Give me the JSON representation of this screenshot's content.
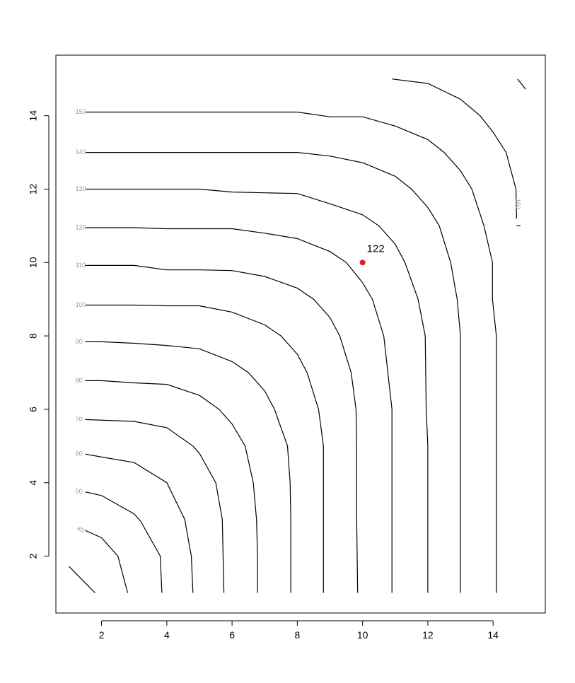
{
  "chart_data": {
    "type": "contour",
    "title": "",
    "xlabel": "",
    "ylabel": "",
    "xlim": [
      0.6,
      15.6
    ],
    "ylim": [
      0.45,
      15.65
    ],
    "x_ticks": [
      "2",
      "4",
      "6",
      "8",
      "10",
      "12",
      "14"
    ],
    "y_ticks": [
      "2",
      "4",
      "6",
      "8",
      "10",
      "12",
      "14"
    ],
    "grid": false,
    "contour_levels": [
      {
        "level": "40",
        "points": [
          [
            1.0,
            1.72
          ],
          [
            1.8,
            1.0
          ]
        ]
      },
      {
        "level": "40",
        "points": [
          [
            1.5,
            2.7
          ],
          [
            2.0,
            2.5
          ],
          [
            2.5,
            2.0
          ],
          [
            2.8,
            1.0
          ]
        ]
      },
      {
        "level": "50",
        "points": [
          [
            1.5,
            3.75
          ],
          [
            2.0,
            3.65
          ],
          [
            3.0,
            3.15
          ],
          [
            3.2,
            2.95
          ],
          [
            3.8,
            2.0
          ],
          [
            3.85,
            1.0
          ]
        ]
      },
      {
        "level": "60",
        "points": [
          [
            1.5,
            4.78
          ],
          [
            2.0,
            4.7
          ],
          [
            3.0,
            4.55
          ],
          [
            4.0,
            4.0
          ],
          [
            4.55,
            3.0
          ],
          [
            4.75,
            2.0
          ],
          [
            4.8,
            1.0
          ]
        ]
      },
      {
        "level": "70",
        "points": [
          [
            1.5,
            5.72
          ],
          [
            3.0,
            5.67
          ],
          [
            4.0,
            5.5
          ],
          [
            4.8,
            5.0
          ],
          [
            5.0,
            4.8
          ],
          [
            5.5,
            4.0
          ],
          [
            5.7,
            3.0
          ],
          [
            5.75,
            1.0
          ]
        ]
      },
      {
        "level": "80",
        "points": [
          [
            1.5,
            6.78
          ],
          [
            2.0,
            6.78
          ],
          [
            3.0,
            6.72
          ],
          [
            4.0,
            6.68
          ],
          [
            5.0,
            6.38
          ],
          [
            5.6,
            6.0
          ],
          [
            6.0,
            5.6
          ],
          [
            6.4,
            5.0
          ],
          [
            6.65,
            4.0
          ],
          [
            6.75,
            3.0
          ],
          [
            6.78,
            2.0
          ],
          [
            6.78,
            1.0
          ]
        ]
      },
      {
        "level": "90",
        "points": [
          [
            1.5,
            7.84
          ],
          [
            2.0,
            7.84
          ],
          [
            3.0,
            7.8
          ],
          [
            4.0,
            7.74
          ],
          [
            5.0,
            7.65
          ],
          [
            6.0,
            7.3
          ],
          [
            6.5,
            7.0
          ],
          [
            7.0,
            6.5
          ],
          [
            7.3,
            6.0
          ],
          [
            7.7,
            5.0
          ],
          [
            7.78,
            4.0
          ],
          [
            7.8,
            3.0
          ],
          [
            7.8,
            1.0
          ]
        ]
      },
      {
        "level": "100",
        "points": [
          [
            1.5,
            8.84
          ],
          [
            3.0,
            8.84
          ],
          [
            4.0,
            8.82
          ],
          [
            5.0,
            8.82
          ],
          [
            6.0,
            8.65
          ],
          [
            7.0,
            8.3
          ],
          [
            7.5,
            8.0
          ],
          [
            8.0,
            7.5
          ],
          [
            8.3,
            7.0
          ],
          [
            8.65,
            6.0
          ],
          [
            8.8,
            5.0
          ],
          [
            8.8,
            1.0
          ]
        ]
      },
      {
        "level": "110",
        "points": [
          [
            1.5,
            9.92
          ],
          [
            3.0,
            9.92
          ],
          [
            4.0,
            9.8
          ],
          [
            5.0,
            9.8
          ],
          [
            6.0,
            9.78
          ],
          [
            7.0,
            9.62
          ],
          [
            8.0,
            9.3
          ],
          [
            8.5,
            9.0
          ],
          [
            9.0,
            8.5
          ],
          [
            9.3,
            8.0
          ],
          [
            9.65,
            7.0
          ],
          [
            9.8,
            6.0
          ],
          [
            9.82,
            5.0
          ],
          [
            9.82,
            3.0
          ],
          [
            9.85,
            1.0
          ]
        ]
      },
      {
        "level": "120",
        "points": [
          [
            1.5,
            10.95
          ],
          [
            3.0,
            10.95
          ],
          [
            4.0,
            10.92
          ],
          [
            5.0,
            10.92
          ],
          [
            6.0,
            10.92
          ],
          [
            7.0,
            10.8
          ],
          [
            8.0,
            10.65
          ],
          [
            9.0,
            10.3
          ],
          [
            9.5,
            10.0
          ],
          [
            10.0,
            9.45
          ],
          [
            10.3,
            9.0
          ],
          [
            10.65,
            8.0
          ],
          [
            10.9,
            6.0
          ],
          [
            10.9,
            1.0
          ]
        ]
      },
      {
        "level": "130",
        "points": [
          [
            1.5,
            12.0
          ],
          [
            4.0,
            12.0
          ],
          [
            5.0,
            12.0
          ],
          [
            6.0,
            11.92
          ],
          [
            7.0,
            11.9
          ],
          [
            8.0,
            11.88
          ],
          [
            9.0,
            11.6
          ],
          [
            10.0,
            11.3
          ],
          [
            10.5,
            11.0
          ],
          [
            11.0,
            10.5
          ],
          [
            11.3,
            10.0
          ],
          [
            11.7,
            9.0
          ],
          [
            11.92,
            8.0
          ],
          [
            11.95,
            6.0
          ],
          [
            12.0,
            5.0
          ],
          [
            12.0,
            1.0
          ]
        ]
      },
      {
        "level": "140",
        "points": [
          [
            1.5,
            13.0
          ],
          [
            4.0,
            13.0
          ],
          [
            6.0,
            13.0
          ],
          [
            8.0,
            13.0
          ],
          [
            9.0,
            12.9
          ],
          [
            10.0,
            12.72
          ],
          [
            11.0,
            12.35
          ],
          [
            11.5,
            12.0
          ],
          [
            12.0,
            11.5
          ],
          [
            12.35,
            11.0
          ],
          [
            12.7,
            10.0
          ],
          [
            12.9,
            9.0
          ],
          [
            13.0,
            8.0
          ],
          [
            13.0,
            1.0
          ]
        ]
      },
      {
        "level": "150",
        "points": [
          [
            1.5,
            14.1
          ],
          [
            4.0,
            14.1
          ],
          [
            6.0,
            14.1
          ],
          [
            8.0,
            14.1
          ],
          [
            9.0,
            13.97
          ],
          [
            10.0,
            13.97
          ],
          [
            11.0,
            13.72
          ],
          [
            12.0,
            13.35
          ],
          [
            12.5,
            13.0
          ],
          [
            13.0,
            12.5
          ],
          [
            13.35,
            12.0
          ],
          [
            13.72,
            11.0
          ],
          [
            13.98,
            10.0
          ],
          [
            13.98,
            9.0
          ],
          [
            14.1,
            8.0
          ],
          [
            14.1,
            1.0
          ]
        ]
      },
      {
        "level": "160",
        "points": [
          [
            10.9,
            15.0
          ],
          [
            12.0,
            14.88
          ],
          [
            13.0,
            14.45
          ],
          [
            13.6,
            14.0
          ],
          [
            14.0,
            13.55
          ],
          [
            14.4,
            13.0
          ],
          [
            14.7,
            12.0
          ],
          [
            14.72,
            11.2
          ]
        ]
      },
      {
        "level": "160",
        "points": [
          [
            14.72,
            11.0
          ],
          [
            14.84,
            11.0
          ]
        ]
      },
      {
        "level": "160",
        "points": [
          [
            14.75,
            15.0
          ],
          [
            15.0,
            14.72
          ]
        ]
      }
    ],
    "contour_labels": [
      {
        "text": "40",
        "x": 1.25,
        "y": 2.76,
        "rotate": 25
      },
      {
        "text": "50",
        "x": 1.2,
        "y": 3.75,
        "rotate": 0
      },
      {
        "text": "60",
        "x": 1.2,
        "y": 4.78,
        "rotate": 0
      },
      {
        "text": "70",
        "x": 1.2,
        "y": 5.72,
        "rotate": 0
      },
      {
        "text": "80",
        "x": 1.2,
        "y": 6.78,
        "rotate": 0
      },
      {
        "text": "90",
        "x": 1.2,
        "y": 7.84,
        "rotate": 0
      },
      {
        "text": "100",
        "x": 1.2,
        "y": 8.84,
        "rotate": 0
      },
      {
        "text": "110",
        "x": 1.2,
        "y": 9.92,
        "rotate": 0
      },
      {
        "text": "120",
        "x": 1.2,
        "y": 10.95,
        "rotate": 0
      },
      {
        "text": "130",
        "x": 1.2,
        "y": 12.0,
        "rotate": 0
      },
      {
        "text": "140",
        "x": 1.2,
        "y": 13.0,
        "rotate": 0
      },
      {
        "text": "150",
        "x": 1.2,
        "y": 14.1,
        "rotate": 0
      },
      {
        "text": "160",
        "x": 14.75,
        "y": 11.6,
        "rotate": 90
      }
    ],
    "highlight_point": {
      "x": 10.0,
      "y": 10.0,
      "label": "122",
      "color": "#e41a1c"
    },
    "line_color": "#000000",
    "label_color": "#9a9a9a"
  }
}
